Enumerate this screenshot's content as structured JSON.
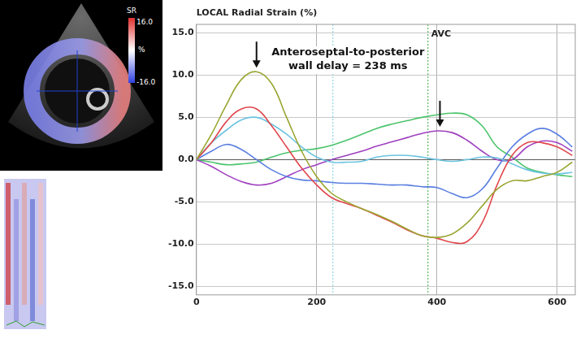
{
  "chart_data": {
    "type": "line",
    "title": "LOCAL Radial Strain (%)",
    "x": [
      0,
      25,
      50,
      75,
      100,
      125,
      150,
      175,
      200,
      225,
      250,
      275,
      300,
      325,
      350,
      375,
      400,
      425,
      450,
      475,
      500,
      525,
      550,
      575,
      600,
      625
    ],
    "series": [
      {
        "color": "#9aa632",
        "values": [
          0,
          3,
          6.5,
          9.5,
          10.4,
          9,
          5,
          1,
          -2,
          -4,
          -5,
          -5.8,
          -6.5,
          -7.3,
          -8.2,
          -9,
          -9.2,
          -8.8,
          -7.5,
          -5.5,
          -3.5,
          -2.5,
          -2.5,
          -2,
          -1.5,
          -0.3
        ]
      },
      {
        "color": "#e0474c",
        "values": [
          0,
          2,
          4.5,
          6,
          6,
          4,
          1.5,
          -1,
          -3,
          -4.5,
          -5.2,
          -5.8,
          -6.6,
          -7.4,
          -8.3,
          -9,
          -9.3,
          -9.8,
          -9.7,
          -7.5,
          -3,
          0.5,
          2,
          2,
          1.5,
          0.5
        ]
      },
      {
        "color": "#6cc3e0",
        "values": [
          0,
          2,
          3.5,
          4.7,
          5,
          4.2,
          3,
          1.5,
          0.3,
          -0.3,
          -0.3,
          -0.2,
          0.3,
          0.5,
          0.5,
          0.3,
          0,
          -0.2,
          0,
          0.3,
          0.2,
          -0.5,
          -1.2,
          -1.6,
          -1.7,
          -1.5
        ]
      },
      {
        "color": "#5a7fe0",
        "values": [
          0,
          1,
          1.8,
          1.2,
          0,
          -1.2,
          -2,
          -2.4,
          -2.5,
          -2.7,
          -2.8,
          -2.8,
          -2.9,
          -3,
          -3,
          -3.2,
          -3.3,
          -4,
          -4.5,
          -3.5,
          -1,
          1.5,
          3,
          3.7,
          3,
          1.5
        ]
      },
      {
        "color": "#a040c0",
        "values": [
          0,
          -0.8,
          -1.8,
          -2.6,
          -3,
          -2.8,
          -2,
          -1.2,
          -0.6,
          0,
          0.5,
          1,
          1.6,
          2.1,
          2.6,
          3.1,
          3.4,
          3.2,
          2.3,
          1,
          0,
          0,
          1.5,
          2.2,
          2,
          1
        ]
      },
      {
        "color": "#4cc46c",
        "values": [
          0,
          -0.3,
          -0.6,
          -0.5,
          -0.3,
          0.3,
          0.8,
          1.1,
          1.3,
          1.7,
          2.3,
          3,
          3.7,
          4.2,
          4.6,
          5,
          5.3,
          5.5,
          5.3,
          4,
          1.5,
          0.3,
          -1,
          -1.5,
          -1.8,
          -2
        ]
      }
    ],
    "xlim": [
      0,
      630
    ],
    "xticks": [
      0,
      200,
      400,
      600
    ],
    "ylim": [
      -16,
      16
    ],
    "yticks": [
      {
        "value": -15,
        "label": "-15.0"
      },
      {
        "value": -10,
        "label": "-10.0"
      },
      {
        "value": -5,
        "label": "-5.0"
      },
      {
        "value": 0,
        "label": "0.0"
      },
      {
        "value": 5,
        "label": "5.0"
      },
      {
        "value": 10,
        "label": "10.0"
      },
      {
        "value": 15,
        "label": "15.0"
      }
    ],
    "grid": true,
    "annotation": "Anteroseptal-to-posterior wall delay = 238 ms",
    "vlines": [
      {
        "x": 385,
        "label": "AVC",
        "color": "#5cb85c"
      },
      {
        "x": 227,
        "color": "#8fd8e0"
      }
    ],
    "arrows": [
      {
        "x": 100,
        "y": 10.4
      },
      {
        "x": 405,
        "y": 3.4
      }
    ]
  },
  "image_panel": {
    "colorbar": {
      "title": "SR",
      "max_label": "16.0",
      "min_label": "-16.0",
      "unit": "%"
    }
  }
}
